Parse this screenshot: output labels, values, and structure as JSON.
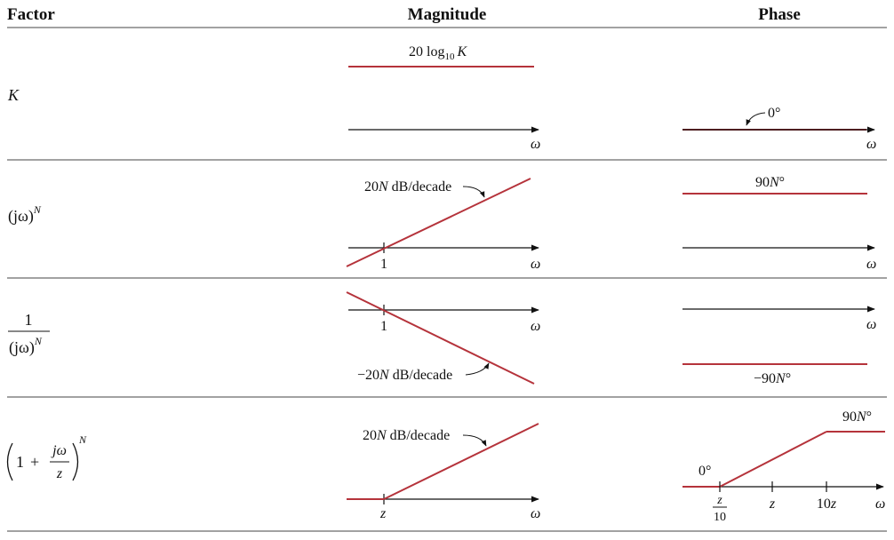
{
  "headers": {
    "factor": "Factor",
    "magnitude": "Magnitude",
    "phase": "Phase"
  },
  "axis_var": "ω",
  "rows": [
    {
      "factor": {
        "text": "K"
      },
      "magnitude": {
        "label_main": "20 log",
        "label_sub": "10",
        "label_var": "K"
      },
      "phase": {
        "label": "0°"
      }
    },
    {
      "factor": {
        "base": "(jω)",
        "exp": "N"
      },
      "magnitude": {
        "slope_coef": "20",
        "slope_N": "N",
        "slope_unit": " dB/decade",
        "tick": "1"
      },
      "phase": {
        "label_num": "90",
        "label_N": "N",
        "label_deg": "°"
      }
    },
    {
      "factor": {
        "num": "1",
        "den_base": "(jω)",
        "den_exp": "N"
      },
      "magnitude": {
        "slope_coef": "−20",
        "slope_N": "N",
        "slope_unit": " dB/decade",
        "tick": "1"
      },
      "phase": {
        "label_num": "−90",
        "label_N": "N",
        "label_deg": "°"
      }
    },
    {
      "factor": {
        "one": "1",
        "plus": "+",
        "frac_num": "jω",
        "frac_den": "z",
        "exp": "N"
      },
      "magnitude": {
        "slope_coef": "20",
        "slope_N": "N",
        "slope_unit": " dB/decade",
        "tick": "z"
      },
      "phase": {
        "start_label": "0°",
        "end_num": "90",
        "end_N": "N",
        "end_deg": "°",
        "tick1_num": "z",
        "tick1_den": "10",
        "tick2": "z",
        "tick3_num": "10",
        "tick3_var": "z"
      }
    }
  ]
}
